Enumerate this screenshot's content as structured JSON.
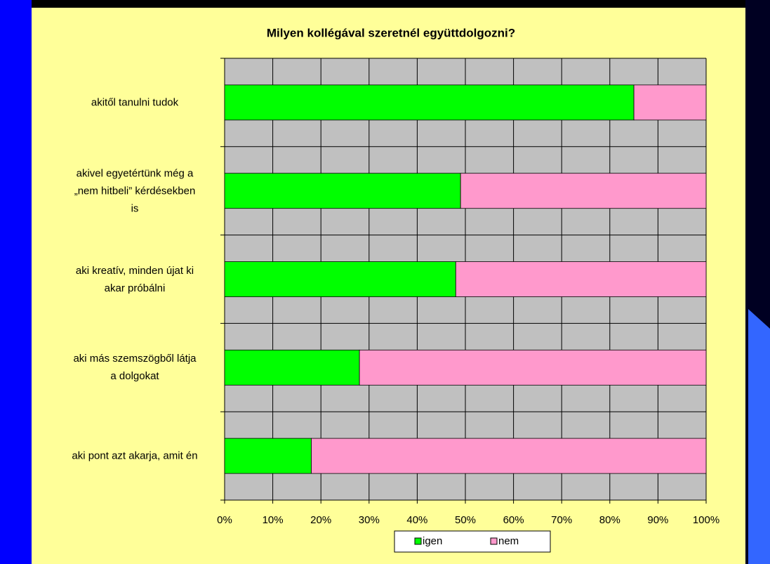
{
  "chart_data": {
    "type": "bar",
    "orientation": "horizontal",
    "stacked": true,
    "title": "Milyen kollégával szeretnél együttdolgozni?",
    "categories": [
      "akitől tanulni tudok",
      "akivel egyetértünk még a\n„nem hitbeli” kérdésekben\nis",
      "aki kreatív, minden újat ki\nakar próbálni",
      "aki más szemszögből látja\na dolgokat",
      "aki pont azt akarja, amit én"
    ],
    "series": [
      {
        "name": "igen",
        "color": "#00ff00",
        "values": [
          85,
          49,
          48,
          28,
          18
        ]
      },
      {
        "name": "nem",
        "color": "#ff99cc",
        "values": [
          15,
          51,
          52,
          72,
          82
        ]
      }
    ],
    "xlim": [
      0,
      100
    ],
    "xticks": [
      {
        "value": 0,
        "label": "0%"
      },
      {
        "value": 10,
        "label": "10%"
      },
      {
        "value": 20,
        "label": "20%"
      },
      {
        "value": 30,
        "label": "30%"
      },
      {
        "value": 40,
        "label": "40%"
      },
      {
        "value": 50,
        "label": "50%"
      },
      {
        "value": 60,
        "label": "60%"
      },
      {
        "value": 70,
        "label": "70%"
      },
      {
        "value": 80,
        "label": "80%"
      },
      {
        "value": 90,
        "label": "90%"
      },
      {
        "value": 100,
        "label": "100%"
      }
    ],
    "grid": true,
    "legend": "bottom",
    "plot_background": "#c0c0c0"
  }
}
